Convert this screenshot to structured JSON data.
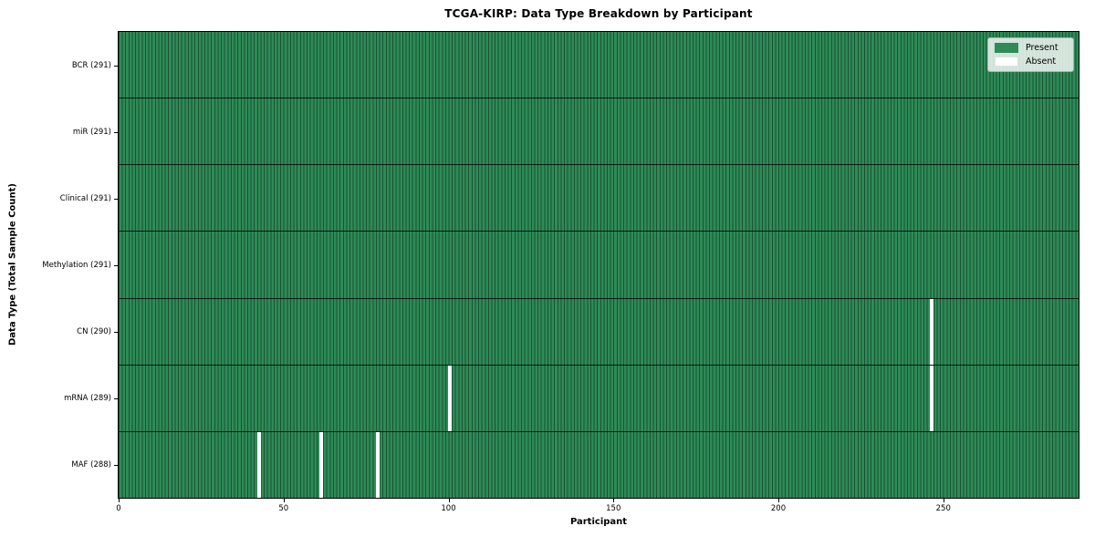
{
  "chart_data": {
    "type": "heatmap",
    "title": "TCGA-KIRP: Data Type Breakdown by Participant",
    "xlabel": "Participant",
    "ylabel": "Data Type (Total Sample Count)",
    "n_participants": 291,
    "xlim": [
      0,
      291
    ],
    "x_ticks": [
      0,
      50,
      100,
      150,
      200,
      250
    ],
    "rows": [
      {
        "name": "BCR",
        "label": "BCR (291)",
        "present_count": 291,
        "absent_participants": []
      },
      {
        "name": "miR",
        "label": "miR (291)",
        "present_count": 291,
        "absent_participants": []
      },
      {
        "name": "Clinical",
        "label": "Clinical (291)",
        "present_count": 291,
        "absent_participants": []
      },
      {
        "name": "Methylation",
        "label": "Methylation (291)",
        "present_count": 291,
        "absent_participants": []
      },
      {
        "name": "CN",
        "label": "CN (290)",
        "present_count": 290,
        "absent_participants": [
          246
        ]
      },
      {
        "name": "mRNA",
        "label": "mRNA (289)",
        "present_count": 289,
        "absent_participants": [
          100,
          246
        ]
      },
      {
        "name": "MAF",
        "label": "MAF (288)",
        "present_count": 288,
        "absent_participants": [
          42,
          61,
          78
        ]
      }
    ],
    "legend": {
      "position": "upper-right",
      "entries": [
        {
          "label": "Present",
          "color": "#2e8b57"
        },
        {
          "label": "Absent",
          "color": "#ffffff"
        }
      ]
    },
    "colors": {
      "present": "#2e8b57",
      "absent": "#ffffff",
      "cell_edge": "#1a5233",
      "row_divider": "#000000",
      "spine": "#000000"
    },
    "grid": "row-dividers-only"
  }
}
